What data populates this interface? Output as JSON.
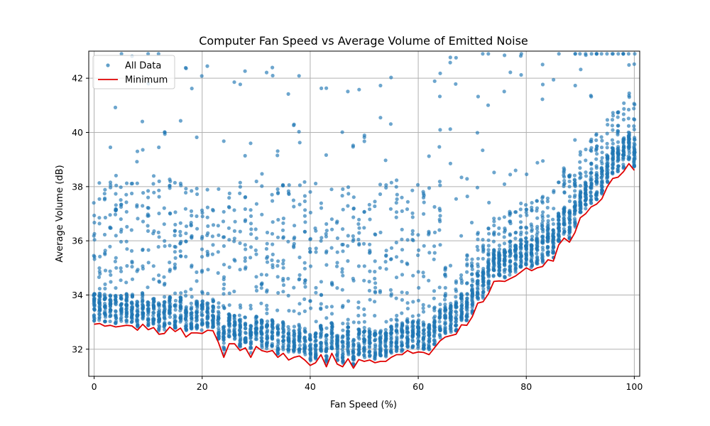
{
  "chart_data": {
    "type": "scatter",
    "title": "Computer Fan Speed vs Average Volume of Emitted Noise",
    "xlabel": "Fan Speed (%)",
    "ylabel": "Average Volume (dB)",
    "xlim": [
      -1,
      101
    ],
    "ylim": [
      31.0,
      43.0
    ],
    "x_ticks": [
      0,
      20,
      40,
      60,
      80,
      100
    ],
    "y_ticks": [
      32,
      34,
      36,
      38,
      40,
      42
    ],
    "grid": true,
    "legend_position": "top-left",
    "colors": {
      "scatter": "#1f77b4",
      "minimum": "#e00000"
    },
    "series": [
      {
        "name": "All Data",
        "kind": "scatter",
        "generated_distribution": "dense cluster about 1 dB above the Minimum curve with sparse scatter up to about 38 dB and outliers above"
      },
      {
        "name": "Minimum",
        "kind": "line",
        "x": [
          0,
          1,
          2,
          3,
          4,
          5,
          6,
          7,
          8,
          9,
          10,
          11,
          12,
          13,
          14,
          15,
          16,
          17,
          18,
          19,
          20,
          21,
          22,
          23,
          24,
          25,
          26,
          27,
          28,
          29,
          30,
          31,
          32,
          33,
          34,
          35,
          36,
          37,
          38,
          39,
          40,
          41,
          42,
          43,
          44,
          45,
          46,
          47,
          48,
          49,
          50,
          51,
          52,
          53,
          54,
          55,
          56,
          57,
          58,
          59,
          60,
          61,
          62,
          63,
          64,
          65,
          66,
          67,
          68,
          69,
          70,
          71,
          72,
          73,
          74,
          75,
          76,
          77,
          78,
          79,
          80,
          81,
          82,
          83,
          84,
          85,
          86,
          87,
          88,
          89,
          90,
          91,
          92,
          93,
          94,
          95,
          96,
          97,
          98,
          99,
          100
        ],
        "y": [
          32.92,
          32.95,
          32.85,
          32.88,
          32.82,
          32.85,
          32.88,
          32.86,
          32.7,
          32.92,
          32.72,
          32.8,
          32.55,
          32.58,
          32.82,
          32.65,
          32.78,
          32.45,
          32.6,
          32.6,
          32.58,
          32.7,
          32.68,
          32.25,
          31.7,
          32.2,
          32.2,
          31.95,
          32.05,
          31.7,
          32.1,
          31.95,
          31.9,
          31.95,
          31.7,
          31.85,
          31.6,
          31.7,
          31.75,
          31.6,
          31.4,
          31.5,
          31.8,
          31.35,
          31.85,
          31.45,
          31.35,
          31.65,
          31.3,
          31.62,
          31.55,
          31.6,
          31.5,
          31.55,
          31.55,
          31.7,
          31.8,
          31.8,
          31.95,
          31.85,
          31.9,
          31.88,
          31.8,
          32.05,
          32.3,
          32.45,
          32.5,
          32.55,
          32.9,
          32.88,
          33.2,
          33.7,
          33.75,
          34.05,
          34.5,
          34.52,
          34.5,
          34.6,
          34.7,
          34.85,
          35.0,
          34.9,
          35.0,
          35.05,
          35.3,
          35.25,
          35.85,
          36.1,
          35.95,
          36.3,
          36.85,
          37.0,
          37.25,
          37.35,
          37.55,
          38.0,
          38.3,
          38.35,
          38.55,
          38.85,
          38.6
        ]
      }
    ]
  }
}
